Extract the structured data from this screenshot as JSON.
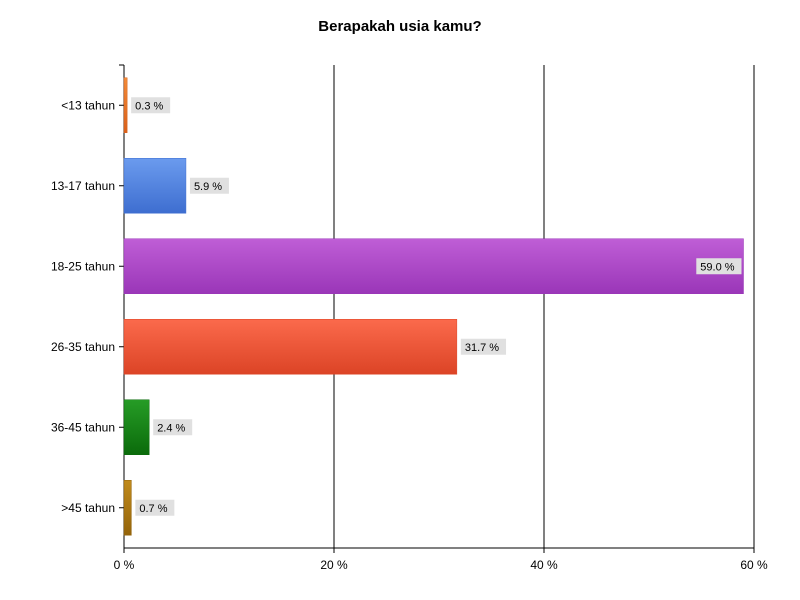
{
  "chart_data": {
    "type": "bar",
    "orientation": "horizontal",
    "title": "Berapakah usia kamu?",
    "categories": [
      "<13 tahun",
      "13-17 tahun",
      "18-25 tahun",
      "26-35 tahun",
      "36-45 tahun",
      ">45 tahun"
    ],
    "values": [
      0.3,
      5.9,
      59.0,
      31.7,
      2.4,
      0.7
    ],
    "value_labels": [
      "0.3 %",
      "5.9 %",
      "59.0 %",
      "31.7 %",
      "2.4 %",
      "0.7 %"
    ],
    "xlim": [
      0,
      60
    ],
    "x_ticks": [
      0,
      20,
      40,
      60
    ],
    "x_tick_labels": [
      "0 %",
      "20 %",
      "40 %",
      "60 %"
    ],
    "xlabel": "",
    "ylabel": "",
    "grid": "vertical major lines",
    "legend": "none",
    "colors": [
      {
        "top": "#f28c3a",
        "bottom": "#d9601a"
      },
      {
        "top": "#6b9bee",
        "bottom": "#3e6ed0"
      },
      {
        "top": "#bf5ed6",
        "bottom": "#9a36b8"
      },
      {
        "top": "#fb6a4c",
        "bottom": "#dc4426"
      },
      {
        "top": "#269c26",
        "bottom": "#0b6b0b"
      },
      {
        "top": "#c08a1c",
        "bottom": "#94640a"
      }
    ],
    "label_background": "#e0e0e0"
  }
}
